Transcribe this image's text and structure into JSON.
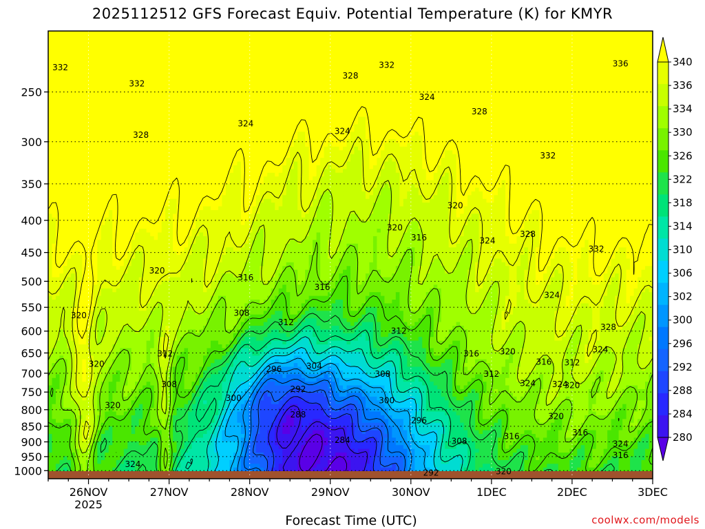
{
  "chart_data": {
    "type": "heatmap",
    "title": "2025112512 GFS Forecast Equiv. Potential Temperature (K) for KMYR",
    "xlabel": "Forecast Time (UTC)",
    "ylabel": "",
    "x_ticks": [
      {
        "day": 0,
        "label": "26NOV",
        "sub": "2025"
      },
      {
        "day": 1,
        "label": "27NOV",
        "sub": ""
      },
      {
        "day": 2,
        "label": "28NOV",
        "sub": ""
      },
      {
        "day": 3,
        "label": "29NOV",
        "sub": ""
      },
      {
        "day": 4,
        "label": "30NOV",
        "sub": ""
      },
      {
        "day": 5,
        "label": "1DEC",
        "sub": ""
      },
      {
        "day": 6,
        "label": "2DEC",
        "sub": ""
      },
      {
        "day": 7,
        "label": "3DEC",
        "sub": ""
      }
    ],
    "y_axis": {
      "scale": "log-pressure",
      "unit": "hPa",
      "range": [
        1030,
        200
      ],
      "ticks": [
        250,
        300,
        350,
        400,
        450,
        500,
        550,
        600,
        650,
        700,
        750,
        800,
        850,
        900,
        950,
        1000
      ]
    },
    "x_range": [
      -0.5,
      7.0
    ],
    "grid": "dotted",
    "colorbar": {
      "placement": "right",
      "labels": [
        340,
        336,
        334,
        330,
        326,
        322,
        318,
        314,
        310,
        306,
        302,
        300,
        296,
        292,
        288,
        284,
        280
      ],
      "colors": [
        "#ffff00",
        "#e6ff00",
        "#c8ff00",
        "#a0ff00",
        "#78f200",
        "#4ae600",
        "#1ee34a",
        "#00e378",
        "#00e6a6",
        "#00dcd2",
        "#00cfff",
        "#00b4ff",
        "#0096ff",
        "#0078ff",
        "#1464ff",
        "#1e46ff",
        "#2828ff",
        "#3c14f0",
        "#5a00e6"
      ]
    },
    "contour_labels": [
      {
        "t": -0.35,
        "p": 228,
        "v": 332
      },
      {
        "t": 0.6,
        "p": 242,
        "v": 332
      },
      {
        "t": 3.7,
        "p": 226,
        "v": 332
      },
      {
        "t": 3.25,
        "p": 235,
        "v": 328
      },
      {
        "t": 6.6,
        "p": 225,
        "v": 336
      },
      {
        "t": 4.2,
        "p": 254,
        "v": 324
      },
      {
        "t": 0.65,
        "p": 292,
        "v": 328
      },
      {
        "t": 1.95,
        "p": 280,
        "v": 324
      },
      {
        "t": 3.15,
        "p": 288,
        "v": 324
      },
      {
        "t": 4.85,
        "p": 268,
        "v": 328
      },
      {
        "t": 5.7,
        "p": 315,
        "v": 332
      },
      {
        "t": 4.55,
        "p": 378,
        "v": 320
      },
      {
        "t": 3.8,
        "p": 410,
        "v": 320
      },
      {
        "t": 4.1,
        "p": 425,
        "v": 316
      },
      {
        "t": 4.95,
        "p": 430,
        "v": 324
      },
      {
        "t": 5.45,
        "p": 420,
        "v": 328
      },
      {
        "t": 6.3,
        "p": 443,
        "v": 332
      },
      {
        "t": 0.85,
        "p": 480,
        "v": 320
      },
      {
        "t": 1.95,
        "p": 492,
        "v": 316
      },
      {
        "t": 2.9,
        "p": 510,
        "v": 316
      },
      {
        "t": 5.75,
        "p": 525,
        "v": 324
      },
      {
        "t": 1.9,
        "p": 560,
        "v": 308
      },
      {
        "t": 2.45,
        "p": 580,
        "v": 312
      },
      {
        "t": 3.85,
        "p": 598,
        "v": 312
      },
      {
        "t": 6.45,
        "p": 590,
        "v": 328
      },
      {
        "t": 6.35,
        "p": 640,
        "v": 324
      },
      {
        "t": -0.12,
        "p": 565,
        "v": 320
      },
      {
        "t": 0.95,
        "p": 650,
        "v": 312
      },
      {
        "t": 0.1,
        "p": 675,
        "v": 320
      },
      {
        "t": 4.75,
        "p": 650,
        "v": 316
      },
      {
        "t": 5.2,
        "p": 645,
        "v": 320
      },
      {
        "t": 5.65,
        "p": 670,
        "v": 316
      },
      {
        "t": 6.0,
        "p": 672,
        "v": 312
      },
      {
        "t": 2.3,
        "p": 688,
        "v": 296
      },
      {
        "t": 2.8,
        "p": 680,
        "v": 304
      },
      {
        "t": 3.65,
        "p": 700,
        "v": 308
      },
      {
        "t": 5.0,
        "p": 700,
        "v": 312
      },
      {
        "t": 1.0,
        "p": 727,
        "v": 308
      },
      {
        "t": 5.45,
        "p": 725,
        "v": 324
      },
      {
        "t": 5.85,
        "p": 727,
        "v": 324
      },
      {
        "t": 6.0,
        "p": 730,
        "v": 320
      },
      {
        "t": 2.6,
        "p": 740,
        "v": 292
      },
      {
        "t": 1.8,
        "p": 765,
        "v": 300
      },
      {
        "t": 3.7,
        "p": 772,
        "v": 300
      },
      {
        "t": 0.3,
        "p": 785,
        "v": 320
      },
      {
        "t": 2.6,
        "p": 813,
        "v": 288
      },
      {
        "t": 4.1,
        "p": 830,
        "v": 296
      },
      {
        "t": 5.8,
        "p": 818,
        "v": 320
      },
      {
        "t": 6.1,
        "p": 868,
        "v": 316
      },
      {
        "t": 3.15,
        "p": 892,
        "v": 284
      },
      {
        "t": 4.6,
        "p": 895,
        "v": 308
      },
      {
        "t": 5.25,
        "p": 880,
        "v": 316
      },
      {
        "t": 6.6,
        "p": 905,
        "v": 324
      },
      {
        "t": 6.6,
        "p": 943,
        "v": 316
      },
      {
        "t": 0.55,
        "p": 975,
        "v": 324
      },
      {
        "t": 4.25,
        "p": 1005,
        "v": 292
      },
      {
        "t": 5.15,
        "p": 1000,
        "v": 320
      }
    ]
  },
  "credit": "coolwx.com/models"
}
